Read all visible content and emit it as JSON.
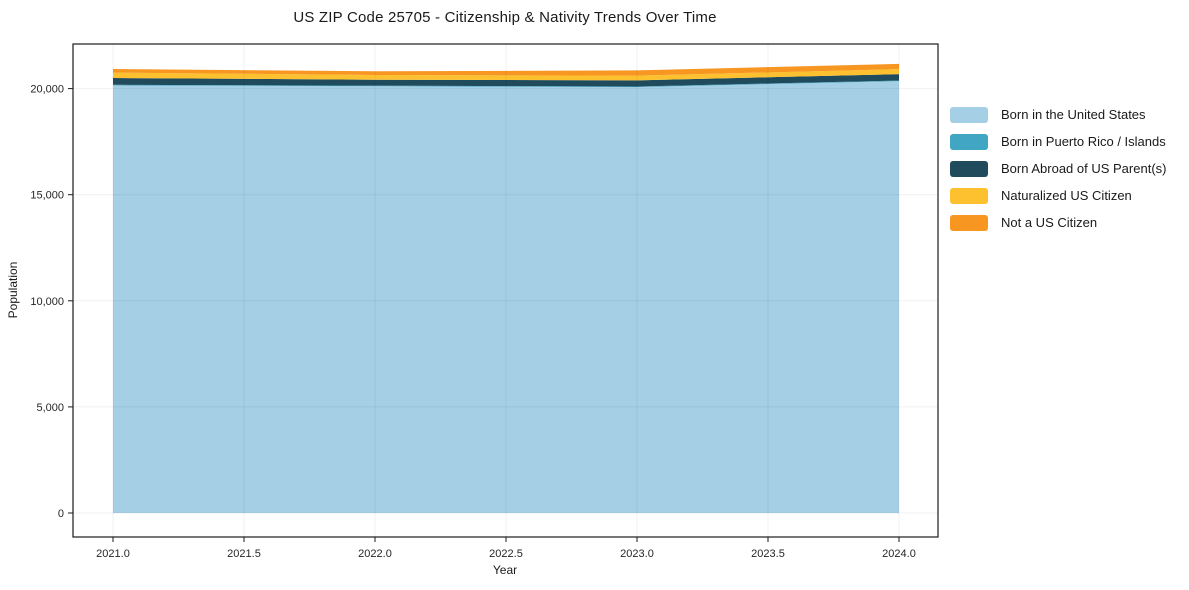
{
  "chart_data": {
    "type": "area",
    "stacked": true,
    "title": "US ZIP Code 25705 - Citizenship & Nativity Trends Over Time",
    "xlabel": "Year",
    "ylabel": "Population",
    "x": [
      2021,
      2022,
      2023,
      2024
    ],
    "series": [
      {
        "name": "Born in the United States",
        "color": "#a5cfe5",
        "values": [
          20150,
          20110,
          20070,
          20350
        ]
      },
      {
        "name": "Born in Puerto Rico / Islands",
        "color": "#41a5c4",
        "values": [
          30,
          30,
          30,
          30
        ]
      },
      {
        "name": "Born Abroad of US Parent(s)",
        "color": "#204b5d",
        "values": [
          320,
          280,
          290,
          300
        ]
      },
      {
        "name": "Naturalized US Citizen",
        "color": "#fdc130",
        "values": [
          255,
          220,
          220,
          235
        ]
      },
      {
        "name": "Not a US Citizen",
        "color": "#f79722",
        "values": [
          170,
          175,
          250,
          250
        ]
      }
    ],
    "xticks": {
      "values": [
        2021.0,
        2021.5,
        2022.0,
        2022.5,
        2023.0,
        2023.5,
        2024.0
      ],
      "labels": [
        "2021.0",
        "2021.5",
        "2022.0",
        "2022.5",
        "2023.0",
        "2023.5",
        "2024.0"
      ]
    },
    "yticks": {
      "values": [
        0,
        5000,
        10000,
        15000,
        20000
      ],
      "labels": [
        "0",
        "5,000",
        "10,000",
        "15,000",
        "20,000"
      ]
    },
    "xlim": [
      2020.85,
      2024.15
    ],
    "ylim": [
      -1130,
      22100
    ],
    "grid": true,
    "legend_position": "right-outside"
  },
  "colors": {
    "axis": "#1a1a1a",
    "grid_on_white": "#ebebeb",
    "background": "#ffffff",
    "text": "#1a1a1a"
  }
}
